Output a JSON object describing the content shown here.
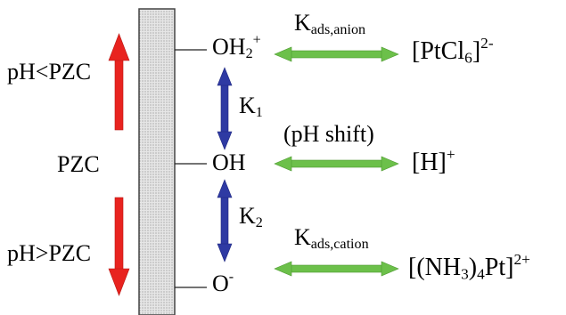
{
  "colors": {
    "red_arrow": "#e8231f",
    "blue_arrow": "#2e3aa3",
    "green_arrow": "#6cc04a",
    "surface_fill": "#d9d9d9",
    "surface_border": "#444444"
  },
  "left": {
    "ph_low": "pH<PZC",
    "pzc": "PZC",
    "ph_high": "pH>PZC"
  },
  "species": {
    "oh2": {
      "base": "OH",
      "sub": "2",
      "sup": "+"
    },
    "oh": "OH",
    "o": {
      "base": "O",
      "sup": "-"
    }
  },
  "constants": {
    "k1": {
      "base": "K",
      "sub": "1"
    },
    "k2": {
      "base": "K",
      "sub": "2"
    },
    "kads_anion": {
      "base": "K",
      "sub": "ads,anion"
    },
    "kads_cation": {
      "base": "K",
      "sub": "ads,cation"
    }
  },
  "ph_shift": "(pH shift)",
  "adsorbates": {
    "ptcl6": {
      "open": "[PtCl",
      "sub": "6",
      "close": "]",
      "sup": "2-"
    },
    "h": {
      "base": "[H]",
      "sup": "+"
    },
    "nh3pt": {
      "open": "[(NH",
      "sub": "3",
      "close": ")",
      "sub2": "4",
      "tail": "Pt]",
      "sup": "2+"
    }
  }
}
